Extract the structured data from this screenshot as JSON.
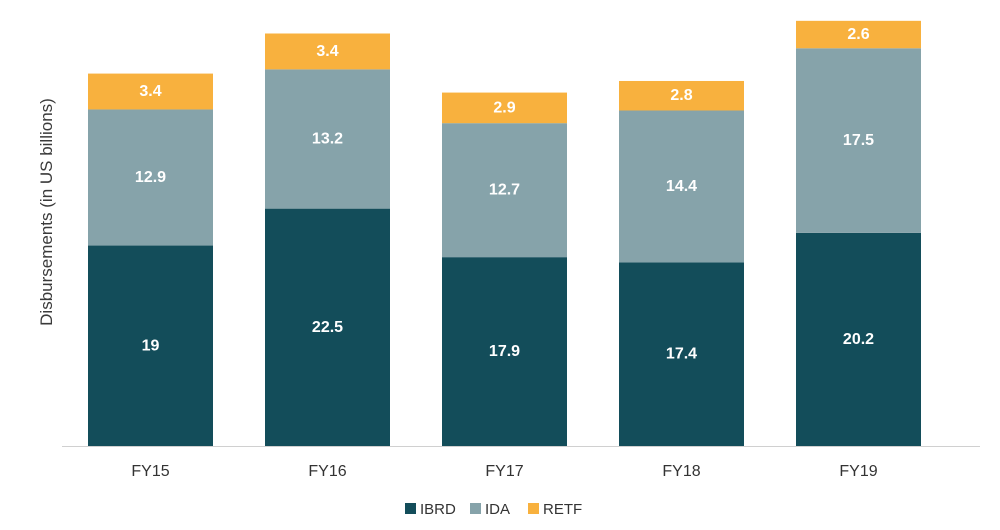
{
  "chart_data": {
    "type": "bar",
    "stacked": true,
    "categories": [
      "FY15",
      "FY16",
      "FY17",
      "FY18",
      "FY19"
    ],
    "series": [
      {
        "name": "IBRD",
        "values": [
          19,
          22.5,
          17.9,
          17.4,
          20.2
        ],
        "color": "#134d5a"
      },
      {
        "name": "IDA",
        "values": [
          12.9,
          13.2,
          12.7,
          14.4,
          17.5
        ],
        "color": "#86a3aa"
      },
      {
        "name": "RETF",
        "values": [
          3.4,
          3.4,
          2.9,
          2.8,
          2.6
        ],
        "color": "#f8b13e"
      }
    ],
    "ylabel": "Disbursements (in US billions)",
    "ylim": [
      0,
      40.3
    ],
    "grid": false,
    "legend_position": "bottom-center",
    "data_labels": true
  }
}
